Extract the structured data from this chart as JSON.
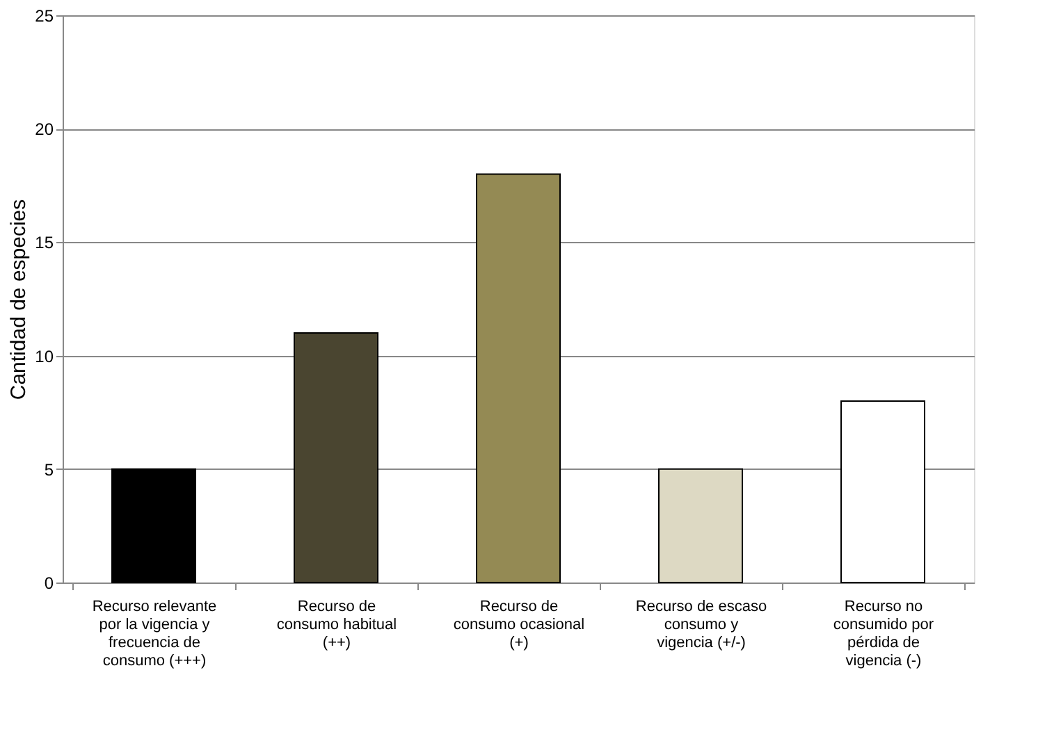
{
  "chart_data": {
    "type": "bar",
    "ylabel": "Cantidad de especies",
    "categories": [
      "Recurso relevante por la vigencia y frecuencia de consumo (+++)",
      "Recurso de consumo habitual (++)",
      "Recurso de consumo ocasional (+)",
      "Recurso de escaso consumo y vigencia (+/-)",
      "Recurso no consumido por pérdida de vigencia (-)"
    ],
    "values": [
      5,
      11,
      18,
      5,
      8
    ],
    "colors": [
      "#000000",
      "#4a4530",
      "#948a54",
      "#ddd9c3",
      "#ffffff"
    ],
    "ylim": [
      0,
      25
    ],
    "yticks": [
      0,
      5,
      10,
      15,
      20,
      25
    ],
    "grid": "y"
  }
}
